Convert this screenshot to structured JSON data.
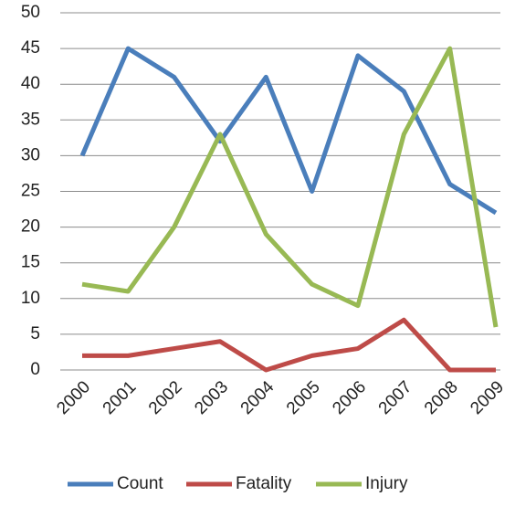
{
  "chart_data": {
    "type": "line",
    "categories": [
      "2000",
      "2001",
      "2002",
      "2003",
      "2004",
      "2005",
      "2006",
      "2007",
      "2008",
      "2009"
    ],
    "series": [
      {
        "name": "Count",
        "color": "#4a7ebb",
        "values": [
          30,
          45,
          41,
          32,
          41,
          25,
          44,
          39,
          26,
          22
        ]
      },
      {
        "name": "Fatality",
        "color": "#be4b48",
        "values": [
          2,
          2,
          3,
          4,
          0,
          2,
          3,
          7,
          0,
          0
        ]
      },
      {
        "name": "Injury",
        "color": "#98b954",
        "values": [
          12,
          11,
          20,
          33,
          19,
          12,
          9,
          33,
          45,
          6
        ]
      }
    ],
    "ylim": [
      0,
      50
    ],
    "yticks": [
      0,
      5,
      10,
      15,
      20,
      25,
      30,
      35,
      40,
      45,
      50
    ],
    "grid": true,
    "legend": "bottom"
  }
}
